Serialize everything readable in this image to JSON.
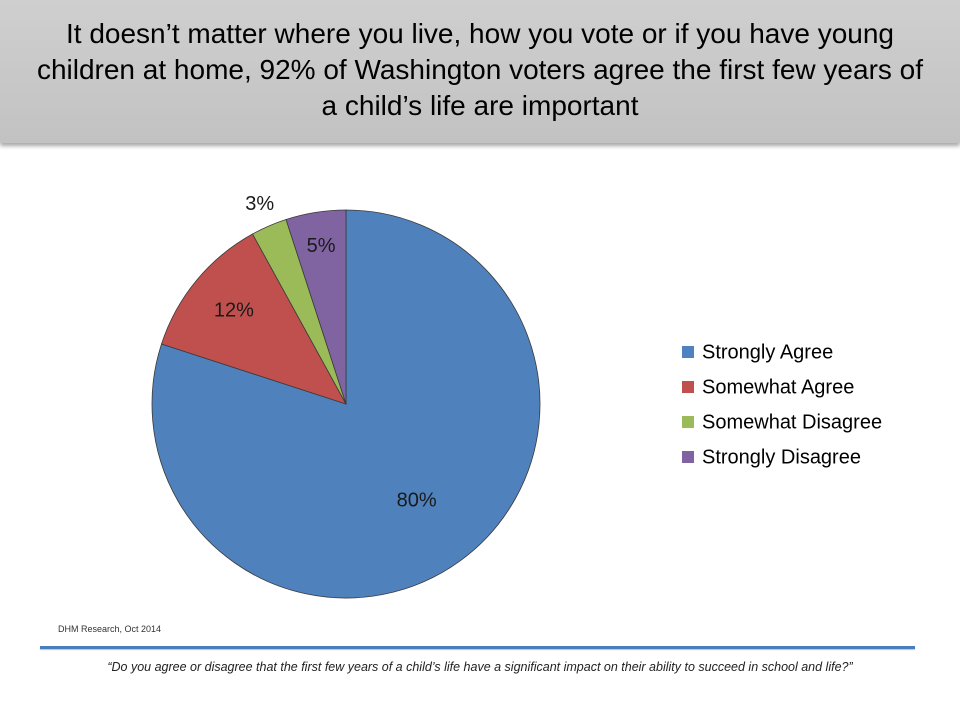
{
  "header": {
    "title": "It doesn’t matter where you live, how you vote or if you have young children at home, 92% of Washington voters agree the first few years of a child’s life are important"
  },
  "chart_data": {
    "type": "pie",
    "title": "",
    "slices": [
      {
        "name": "Strongly Agree",
        "value": 80,
        "label": "80%",
        "color": "#4f81bd"
      },
      {
        "name": "Somewhat Agree",
        "value": 12,
        "label": "12%",
        "color": "#c0504d"
      },
      {
        "name": "Somewhat Disagree",
        "value": 3,
        "label": "3%",
        "color": "#9bbb59"
      },
      {
        "name": "Strongly Disagree",
        "value": 5,
        "label": "5%",
        "color": "#8064a2"
      }
    ],
    "legend_position": "right"
  },
  "footer": {
    "source": "DHM Research, Oct 2014",
    "question": "“Do you agree or disagree that the first few years of a child’s life have a significant impact on their ability to succeed in school and life?”"
  }
}
